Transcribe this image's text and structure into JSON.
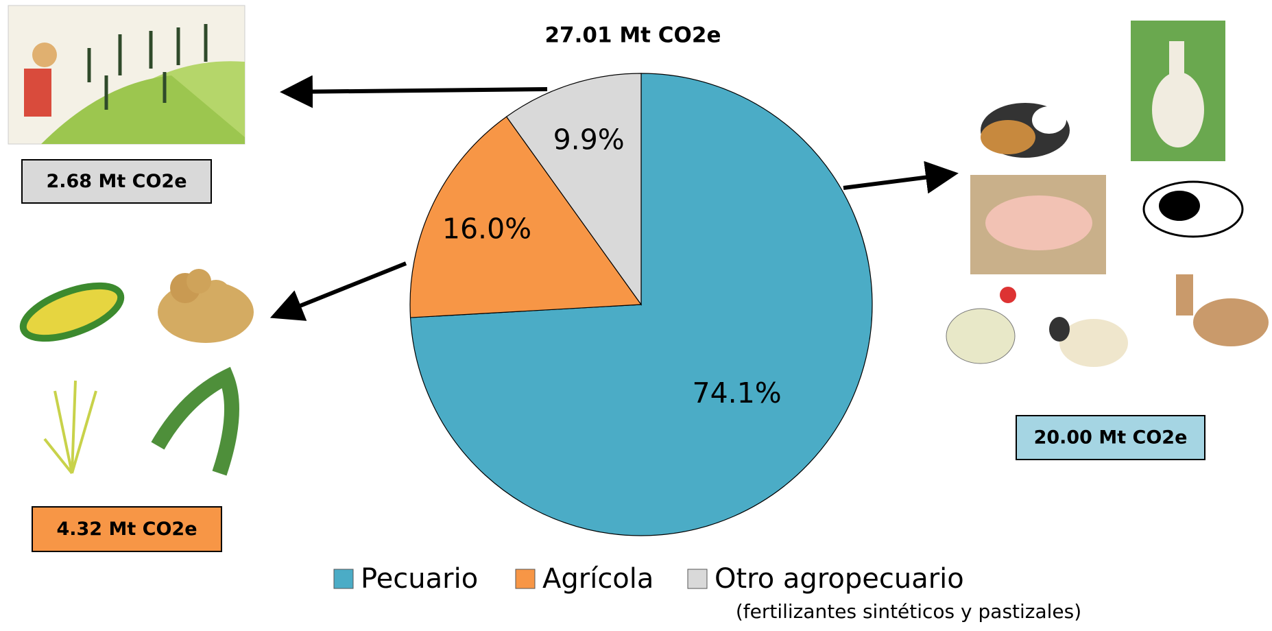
{
  "chart_data": {
    "type": "pie",
    "title": "27.01 Mt CO2e",
    "categories": [
      "Pecuario",
      "Agrícola",
      "Otro agropecuario"
    ],
    "values": [
      74.1,
      16.0,
      9.9
    ],
    "value_labels": [
      "74.1%",
      "16.0%",
      "9.9%"
    ],
    "colors": [
      "#4bacc6",
      "#f79646",
      "#d9d9d9"
    ],
    "legend": "bottom",
    "legend_note": "(fertilizantes sintéticos y pastizales)",
    "annotations": [
      "20.00 Mt CO2e",
      "4.32 Mt CO2e",
      "2.68 Mt CO2e"
    ]
  }
}
